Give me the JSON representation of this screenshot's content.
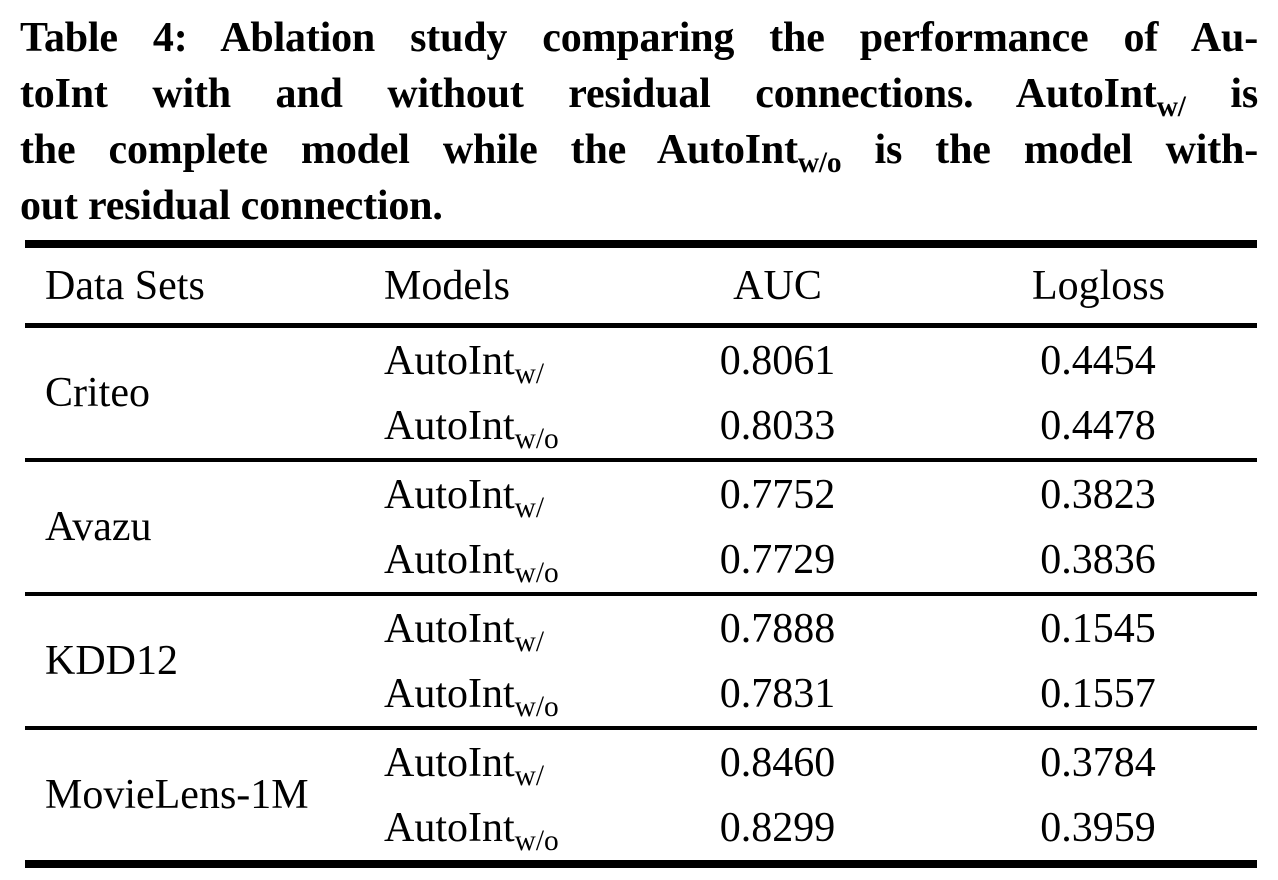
{
  "page": {
    "background_color": "#ffffff",
    "text_color": "#000000",
    "rule_color": "#000000"
  },
  "caption": {
    "lines": [
      {
        "segments": [
          {
            "text": "Table 4: Ablation study comparing the performance of Au-"
          }
        ]
      },
      {
        "segments": [
          {
            "text": "toInt with and without residual connections. AutoInt"
          },
          {
            "text": "w/",
            "sub": true
          },
          {
            "text": " is"
          }
        ]
      },
      {
        "segments": [
          {
            "text": "the complete model while the AutoInt"
          },
          {
            "text": "w/o",
            "sub": true
          },
          {
            "text": " is the model with-"
          }
        ]
      },
      {
        "segments": [
          {
            "text": "out residual connection."
          }
        ]
      }
    ]
  },
  "table": {
    "headers": [
      "Data Sets",
      "Models",
      "AUC",
      "Logloss"
    ],
    "groups": [
      {
        "dataset": "Criteo",
        "rows": [
          {
            "model_base": "AutoInt",
            "model_sub": "w/",
            "auc": "0.8061",
            "logloss": "0.4454"
          },
          {
            "model_base": "AutoInt",
            "model_sub": "w/o",
            "auc": "0.8033",
            "logloss": "0.4478"
          }
        ]
      },
      {
        "dataset": "Avazu",
        "rows": [
          {
            "model_base": "AutoInt",
            "model_sub": "w/",
            "auc": "0.7752",
            "logloss": "0.3823"
          },
          {
            "model_base": "AutoInt",
            "model_sub": "w/o",
            "auc": "0.7729",
            "logloss": "0.3836"
          }
        ]
      },
      {
        "dataset": "KDD12",
        "rows": [
          {
            "model_base": "AutoInt",
            "model_sub": "w/",
            "auc": "0.7888",
            "logloss": "0.1545"
          },
          {
            "model_base": "AutoInt",
            "model_sub": "w/o",
            "auc": "0.7831",
            "logloss": "0.1557"
          }
        ]
      },
      {
        "dataset": "MovieLens-1M",
        "rows": [
          {
            "model_base": "AutoInt",
            "model_sub": "w/",
            "auc": "0.8460",
            "logloss": "0.3784"
          },
          {
            "model_base": "AutoInt",
            "model_sub": "w/o",
            "auc": "0.8299",
            "logloss": "0.3959"
          }
        ]
      }
    ]
  }
}
